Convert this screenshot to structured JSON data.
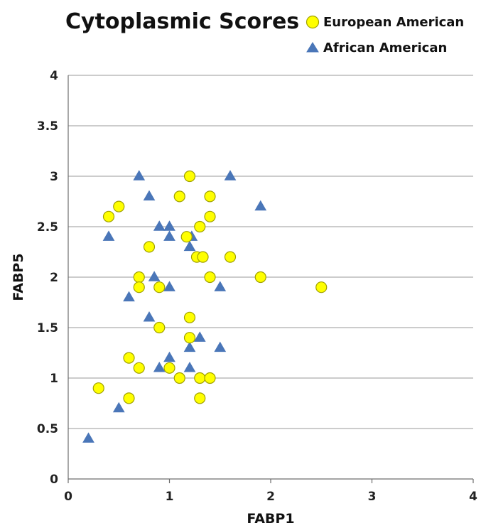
{
  "chart_data": {
    "type": "scatter",
    "title": "Cytoplasmic Scores",
    "xlabel": "FABP1",
    "ylabel": "FABP5",
    "xlim": [
      0,
      4
    ],
    "ylim": [
      0,
      4
    ],
    "x_ticks": [
      "0",
      "1",
      "2",
      "3",
      "4"
    ],
    "y_ticks": [
      "0",
      "0.5",
      "1",
      "1.5",
      "2",
      "2.5",
      "3",
      "3.5",
      "4"
    ],
    "grid": "horizontal",
    "legend_position": "top-right",
    "series": [
      {
        "name": "European American",
        "marker": "circle",
        "color": "#ffff00",
        "edge_color": "#a0a000",
        "points": [
          [
            0.3,
            0.9
          ],
          [
            0.4,
            2.6
          ],
          [
            0.5,
            2.7
          ],
          [
            0.6,
            1.2
          ],
          [
            0.6,
            0.8
          ],
          [
            0.7,
            2.0
          ],
          [
            0.7,
            1.9
          ],
          [
            0.7,
            1.1
          ],
          [
            0.8,
            2.3
          ],
          [
            0.9,
            1.9
          ],
          [
            0.9,
            1.5
          ],
          [
            1.0,
            1.1
          ],
          [
            1.1,
            2.8
          ],
          [
            1.1,
            1.0
          ],
          [
            1.17,
            2.4
          ],
          [
            1.2,
            3.0
          ],
          [
            1.2,
            1.6
          ],
          [
            1.2,
            1.4
          ],
          [
            1.27,
            2.2
          ],
          [
            1.3,
            2.5
          ],
          [
            1.3,
            1.0
          ],
          [
            1.3,
            0.8
          ],
          [
            1.33,
            2.2
          ],
          [
            1.4,
            2.8
          ],
          [
            1.4,
            2.6
          ],
          [
            1.4,
            2.0
          ],
          [
            1.4,
            1.0
          ],
          [
            1.6,
            2.2
          ],
          [
            1.9,
            2.0
          ],
          [
            2.5,
            1.9
          ]
        ]
      },
      {
        "name": "African American",
        "marker": "triangle",
        "color": "#4a76b8",
        "edge_color": "#4a76b8",
        "points": [
          [
            0.2,
            0.4
          ],
          [
            0.4,
            2.4
          ],
          [
            0.5,
            0.7
          ],
          [
            0.6,
            1.8
          ],
          [
            0.7,
            3.0
          ],
          [
            0.8,
            2.8
          ],
          [
            0.8,
            1.6
          ],
          [
            0.85,
            2.0
          ],
          [
            0.9,
            2.5
          ],
          [
            0.9,
            1.1
          ],
          [
            1.0,
            2.5
          ],
          [
            1.0,
            2.4
          ],
          [
            1.0,
            1.9
          ],
          [
            1.0,
            1.2
          ],
          [
            1.2,
            2.3
          ],
          [
            1.22,
            2.4
          ],
          [
            1.2,
            1.3
          ],
          [
            1.2,
            1.1
          ],
          [
            1.3,
            1.4
          ],
          [
            1.5,
            1.9
          ],
          [
            1.5,
            1.3
          ],
          [
            1.6,
            3.0
          ],
          [
            1.9,
            2.7
          ]
        ]
      }
    ]
  }
}
